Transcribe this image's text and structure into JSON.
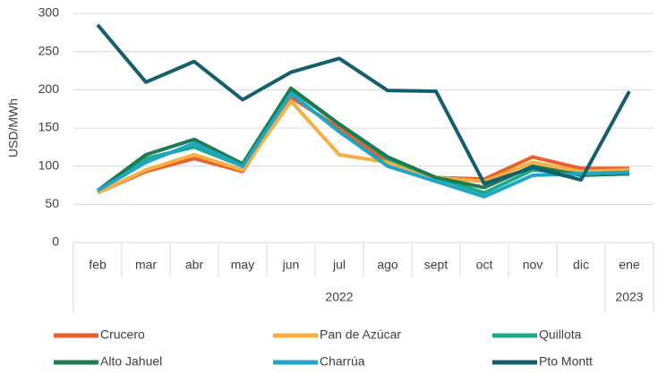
{
  "chart_data": {
    "type": "line",
    "y_label": "USD/MWh",
    "categories": [
      "feb",
      "mar",
      "abr",
      "may",
      "jun",
      "jul",
      "ago",
      "sept",
      "oct",
      "nov",
      "dic",
      "ene"
    ],
    "x_groups": [
      {
        "label": "2022",
        "size": 11
      },
      {
        "label": "2023",
        "size": 1
      }
    ],
    "ylim": [
      0,
      300
    ],
    "yticks": [
      0,
      50,
      100,
      150,
      200,
      250,
      300
    ],
    "grid": true,
    "series": [
      {
        "name": "Crucero",
        "color": "#e8612c",
        "values": [
          65,
          93,
          110,
          93,
          190,
          150,
          105,
          85,
          83,
          112,
          97,
          97
        ]
      },
      {
        "name": "Pan de Azúcar",
        "color": "#f5b041",
        "values": [
          65,
          95,
          115,
          95,
          185,
          115,
          105,
          85,
          80,
          105,
          93,
          95
        ]
      },
      {
        "name": "Quillota",
        "color": "#1aab8a",
        "values": [
          68,
          110,
          125,
          100,
          200,
          155,
          110,
          85,
          65,
          95,
          90,
          90
        ]
      },
      {
        "name": "Alto Jahuel",
        "color": "#1e7a4f",
        "values": [
          68,
          115,
          135,
          103,
          202,
          155,
          112,
          85,
          72,
          100,
          88,
          90
        ]
      },
      {
        "name": "Charrúa",
        "color": "#1ea6c9",
        "values": [
          68,
          105,
          130,
          100,
          195,
          145,
          100,
          80,
          60,
          88,
          90,
          92
        ]
      },
      {
        "name": "Pto Montt",
        "color": "#155e6e",
        "values": [
          285,
          210,
          237,
          187,
          223,
          241,
          199,
          198,
          77,
          98,
          82,
          198
        ]
      }
    ]
  }
}
